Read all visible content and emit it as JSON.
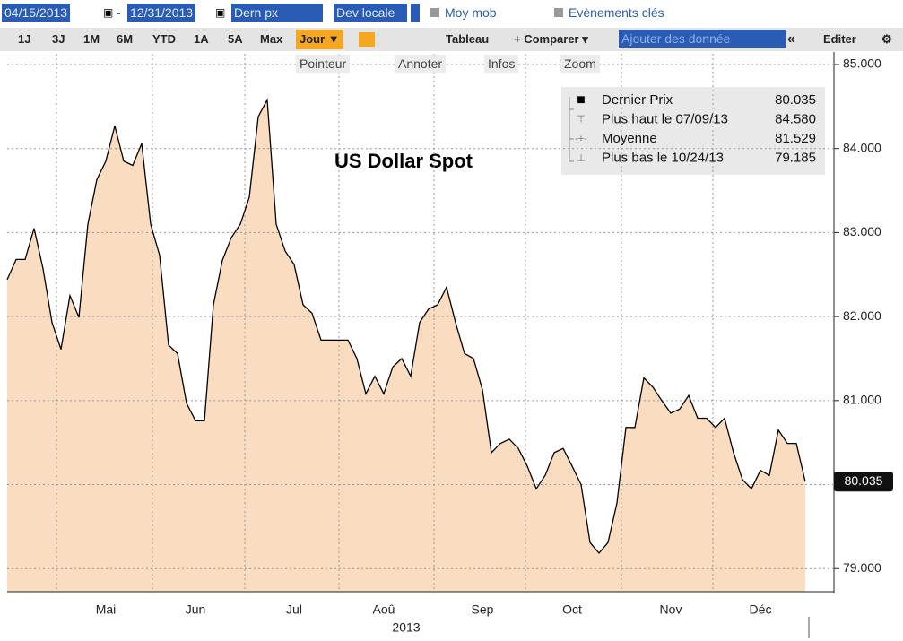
{
  "toolbar": {
    "start_date": "04/15/2013",
    "date_separator": "-",
    "end_date": "12/31/2013",
    "field": "Dern px",
    "currency": "Dev locale",
    "moving_avg": "Moy mob",
    "events": "Evènements clés",
    "periods": [
      "1J",
      "3J",
      "1M",
      "6M",
      "YTD",
      "1A",
      "5A",
      "Max"
    ],
    "frequency": "Jour ▼",
    "table": "Tableau",
    "compare": "+ Comparer ▾",
    "add_data": "Ajouter des donnée",
    "collapse": "«",
    "edit": "Editer",
    "tools": [
      "Pointeur",
      "Annoter",
      "Infos",
      "Zoom"
    ]
  },
  "chart_data": {
    "type": "line",
    "title": "US Dollar Spot",
    "x_label": "2013",
    "categories": [
      null,
      null,
      null,
      null,
      null,
      null,
      null,
      null,
      null,
      null,
      null,
      "Mai",
      null,
      null,
      null,
      null,
      null,
      null,
      null,
      null,
      null,
      "Jun",
      null,
      null,
      null,
      null,
      null,
      null,
      null,
      null,
      null,
      null,
      "Jul",
      null,
      null,
      null,
      null,
      null,
      null,
      null,
      null,
      null,
      "Aoû",
      null,
      null,
      null,
      null,
      null,
      null,
      null,
      null,
      null,
      null,
      "Sep",
      null,
      null,
      null,
      null,
      null,
      null,
      null,
      null,
      null,
      "Oct",
      null,
      null,
      null,
      null,
      null,
      null,
      null,
      null,
      null,
      null,
      "Nov",
      null,
      null,
      null,
      null,
      null,
      null,
      null,
      null,
      null,
      "Déc",
      null,
      null,
      null,
      null,
      null
    ],
    "series": [
      {
        "name": "Dernier Prix",
        "color": "#000000",
        "fill": "#fadcc0",
        "values": [
          82.44,
          82.68,
          82.68,
          83.05,
          82.57,
          81.93,
          81.61,
          82.25,
          81.99,
          83.1,
          83.63,
          83.85,
          84.27,
          83.85,
          83.8,
          84.06,
          83.1,
          82.73,
          81.66,
          81.56,
          80.97,
          80.76,
          80.76,
          82.14,
          82.67,
          82.94,
          83.1,
          83.42,
          84.38,
          84.58,
          83.1,
          82.78,
          82.62,
          82.14,
          82.04,
          81.72,
          81.72,
          81.72,
          81.72,
          81.5,
          81.08,
          81.29,
          81.08,
          81.4,
          81.5,
          81.29,
          81.93,
          82.09,
          82.14,
          82.35,
          81.93,
          81.56,
          81.5,
          81.13,
          80.38,
          80.49,
          80.54,
          80.43,
          80.22,
          79.95,
          80.11,
          80.38,
          80.43,
          80.22,
          80.0,
          79.31,
          79.185,
          79.31,
          79.78,
          80.68,
          80.68,
          81.27,
          81.16,
          81.0,
          80.85,
          80.9,
          81.06,
          80.79,
          80.79,
          80.68,
          80.79,
          80.38,
          80.06,
          79.95,
          80.17,
          80.11,
          80.65,
          80.49,
          80.49,
          80.035
        ]
      }
    ],
    "stats": [
      {
        "label": "Dernier Prix",
        "value": "80.035"
      },
      {
        "label": "Plus haut le 07/09/13",
        "value": "84.580"
      },
      {
        "label": "Moyenne",
        "value": "81.529"
      },
      {
        "label": "Plus bas le 10/24/13",
        "value": "79.185"
      }
    ],
    "ylim": [
      78.725,
      85.128
    ],
    "yticks": [
      {
        "value": 79,
        "label": "79.000"
      },
      {
        "value": 80,
        "label": "80.000"
      },
      {
        "value": 81,
        "label": "81.000"
      },
      {
        "value": 82,
        "label": "82.000"
      },
      {
        "value": 83,
        "label": "83.000"
      },
      {
        "value": 84,
        "label": "84.000"
      },
      {
        "value": 85,
        "label": "85.000"
      }
    ],
    "grid": true
  }
}
